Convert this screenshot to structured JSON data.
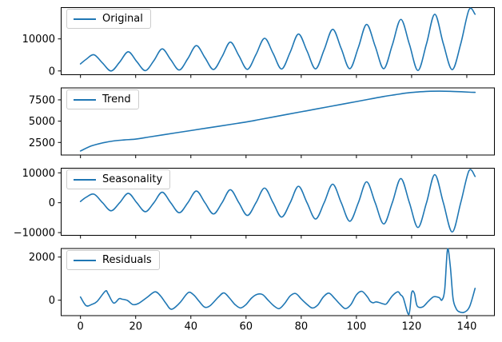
{
  "figure": {
    "background": "#ffffff"
  },
  "chart_data": {
    "type": "line",
    "line_color": "#1f77b4",
    "description": "Time series decomposition: Original, Trend, Seasonality, Residuals",
    "x_axis": {
      "xlim": [
        -7.15,
        150.15
      ],
      "ticks": [
        0,
        20,
        40,
        60,
        80,
        100,
        120,
        140
      ],
      "tick_labels": [
        "0",
        "20",
        "40",
        "60",
        "80",
        "100",
        "120",
        "140"
      ]
    },
    "subplots": [
      {
        "legend": "Original",
        "ylim": [
          -1300,
          19900
        ],
        "yticks": [
          0,
          10000
        ],
        "ytick_labels": [
          "0",
          "10000"
        ],
        "points": [
          [
            0,
            2200
          ],
          [
            2,
            3600
          ],
          [
            4.9,
            5050
          ],
          [
            8,
            2450
          ],
          [
            11.1,
            0
          ],
          [
            14.2,
            2760
          ],
          [
            17.3,
            5980
          ],
          [
            20.4,
            2920
          ],
          [
            23.5,
            100
          ],
          [
            26.6,
            3230
          ],
          [
            29.6,
            6880
          ],
          [
            32.7,
            3535
          ],
          [
            35.8,
            300
          ],
          [
            38.9,
            3845
          ],
          [
            42,
            7900
          ],
          [
            45.1,
            4155
          ],
          [
            48.2,
            450
          ],
          [
            51.3,
            4465
          ],
          [
            54.3,
            9000
          ],
          [
            57.4,
            4770
          ],
          [
            60.5,
            500
          ],
          [
            63.6,
            5115
          ],
          [
            66.7,
            10200
          ],
          [
            69.8,
            5490
          ],
          [
            72.9,
            600
          ],
          [
            76,
            5860
          ],
          [
            79,
            11540
          ],
          [
            82.1,
            6225
          ],
          [
            85.2,
            650
          ],
          [
            88.3,
            6600
          ],
          [
            91.4,
            13000
          ],
          [
            94.5,
            6970
          ],
          [
            97.6,
            700
          ],
          [
            100.7,
            7340
          ],
          [
            103.7,
            14520
          ],
          [
            106.8,
            7710
          ],
          [
            109.9,
            700
          ],
          [
            113,
            8080
          ],
          [
            116.1,
            16100
          ],
          [
            119.2,
            8330
          ],
          [
            122.3,
            150
          ],
          [
            125.4,
            8490
          ],
          [
            128.4,
            17700
          ],
          [
            131.5,
            8500
          ],
          [
            134.7,
            400
          ],
          [
            137.8,
            8460
          ],
          [
            140.8,
            19100
          ],
          [
            143,
            17700
          ]
        ]
      },
      {
        "legend": "Trend",
        "ylim": [
          980,
          8950
        ],
        "yticks": [
          2500,
          5000,
          7500
        ],
        "ytick_labels": [
          "2500",
          "5000",
          "7500"
        ],
        "points": [
          [
            0,
            1500
          ],
          [
            4,
            2100
          ],
          [
            8,
            2450
          ],
          [
            12,
            2680
          ],
          [
            16,
            2800
          ],
          [
            20,
            2900
          ],
          [
            25,
            3150
          ],
          [
            30,
            3400
          ],
          [
            35,
            3650
          ],
          [
            40,
            3900
          ],
          [
            45,
            4150
          ],
          [
            50,
            4400
          ],
          [
            55,
            4650
          ],
          [
            60,
            4900
          ],
          [
            65,
            5200
          ],
          [
            70,
            5500
          ],
          [
            75,
            5800
          ],
          [
            80,
            6100
          ],
          [
            85,
            6400
          ],
          [
            90,
            6700
          ],
          [
            95,
            7000
          ],
          [
            100,
            7300
          ],
          [
            105,
            7600
          ],
          [
            110,
            7900
          ],
          [
            114,
            8100
          ],
          [
            118,
            8300
          ],
          [
            122,
            8420
          ],
          [
            126,
            8500
          ],
          [
            130,
            8520
          ],
          [
            134,
            8500
          ],
          [
            138,
            8450
          ],
          [
            141,
            8400
          ],
          [
            143,
            8380
          ]
        ]
      },
      {
        "legend": "Seasonality",
        "ylim": [
          -11040,
          11680
        ],
        "yticks": [
          -10000,
          0,
          10000
        ],
        "ytick_labels": [
          "−10000",
          "0",
          "10000"
        ],
        "points": [
          [
            0,
            400
          ],
          [
            2,
            1800
          ],
          [
            4.9,
            2850
          ],
          [
            8,
            0
          ],
          [
            11.1,
            -2700
          ],
          [
            14.2,
            0
          ],
          [
            17.3,
            3150
          ],
          [
            20.4,
            0
          ],
          [
            23.5,
            -3000
          ],
          [
            26.6,
            0
          ],
          [
            29.6,
            3500
          ],
          [
            32.7,
            0
          ],
          [
            35.8,
            -3350
          ],
          [
            38.9,
            0
          ],
          [
            42,
            3900
          ],
          [
            45.1,
            0
          ],
          [
            48.2,
            -3750
          ],
          [
            51.3,
            0
          ],
          [
            54.3,
            4350
          ],
          [
            57.4,
            0
          ],
          [
            60.5,
            -4250
          ],
          [
            63.6,
            0
          ],
          [
            66.7,
            4900
          ],
          [
            69.8,
            0
          ],
          [
            72.9,
            -4800
          ],
          [
            76,
            0
          ],
          [
            79,
            5500
          ],
          [
            82.1,
            0
          ],
          [
            85.2,
            -5450
          ],
          [
            88.3,
            0
          ],
          [
            91.4,
            6200
          ],
          [
            94.5,
            0
          ],
          [
            97.6,
            -6200
          ],
          [
            100.7,
            0
          ],
          [
            103.7,
            7000
          ],
          [
            106.8,
            0
          ],
          [
            109.9,
            -7100
          ],
          [
            113,
            0
          ],
          [
            116.1,
            8100
          ],
          [
            119.2,
            0
          ],
          [
            122.3,
            -8300
          ],
          [
            125.4,
            0
          ],
          [
            128.4,
            9400
          ],
          [
            131.5,
            0
          ],
          [
            134.7,
            -9800
          ],
          [
            137.8,
            0
          ],
          [
            140.8,
            10700
          ],
          [
            143,
            8800
          ]
        ]
      },
      {
        "legend": "Residuals",
        "ylim": [
          -733,
          2415
        ],
        "yticks": [
          0,
          2000
        ],
        "ytick_labels": [
          "0",
          "2000"
        ],
        "points": [
          [
            0,
            150
          ],
          [
            2,
            -250
          ],
          [
            4,
            -200
          ],
          [
            6,
            -60
          ],
          [
            9,
            420
          ],
          [
            10,
            300
          ],
          [
            12,
            -130
          ],
          [
            14,
            70
          ],
          [
            15,
            50
          ],
          [
            17,
            -10
          ],
          [
            19,
            -200
          ],
          [
            21,
            -150
          ],
          [
            24,
            120
          ],
          [
            27,
            390
          ],
          [
            29,
            200
          ],
          [
            31,
            -150
          ],
          [
            33,
            -420
          ],
          [
            36,
            -120
          ],
          [
            39,
            350
          ],
          [
            41,
            250
          ],
          [
            43,
            -50
          ],
          [
            45,
            -320
          ],
          [
            47,
            -250
          ],
          [
            50,
            150
          ],
          [
            52,
            340
          ],
          [
            54,
            100
          ],
          [
            56,
            -200
          ],
          [
            58,
            -360
          ],
          [
            60,
            -200
          ],
          [
            62,
            100
          ],
          [
            64,
            270
          ],
          [
            66,
            260
          ],
          [
            68,
            0
          ],
          [
            70,
            -250
          ],
          [
            72,
            -390
          ],
          [
            74,
            -150
          ],
          [
            76,
            200
          ],
          [
            78,
            310
          ],
          [
            80,
            60
          ],
          [
            82,
            -180
          ],
          [
            84,
            -360
          ],
          [
            86,
            -220
          ],
          [
            88,
            150
          ],
          [
            90,
            330
          ],
          [
            92,
            100
          ],
          [
            94,
            -180
          ],
          [
            96,
            -390
          ],
          [
            98,
            -200
          ],
          [
            100,
            250
          ],
          [
            102,
            410
          ],
          [
            104,
            150
          ],
          [
            105,
            -50
          ],
          [
            106,
            -120
          ],
          [
            107,
            -80
          ],
          [
            108,
            -100
          ],
          [
            110,
            -180
          ],
          [
            111,
            -150
          ],
          [
            113,
            200
          ],
          [
            115,
            390
          ],
          [
            116,
            250
          ],
          [
            117,
            100
          ],
          [
            119,
            -660
          ],
          [
            120,
            340
          ],
          [
            121,
            320
          ],
          [
            122,
            -260
          ],
          [
            124,
            -310
          ],
          [
            126,
            -60
          ],
          [
            128,
            160
          ],
          [
            130,
            120
          ],
          [
            131,
            10
          ],
          [
            132,
            500
          ],
          [
            133,
            2350
          ],
          [
            134,
            1600
          ],
          [
            135,
            100
          ],
          [
            136,
            -350
          ],
          [
            137,
            -520
          ],
          [
            139,
            -560
          ],
          [
            141,
            -300
          ],
          [
            143,
            550
          ]
        ]
      }
    ]
  }
}
